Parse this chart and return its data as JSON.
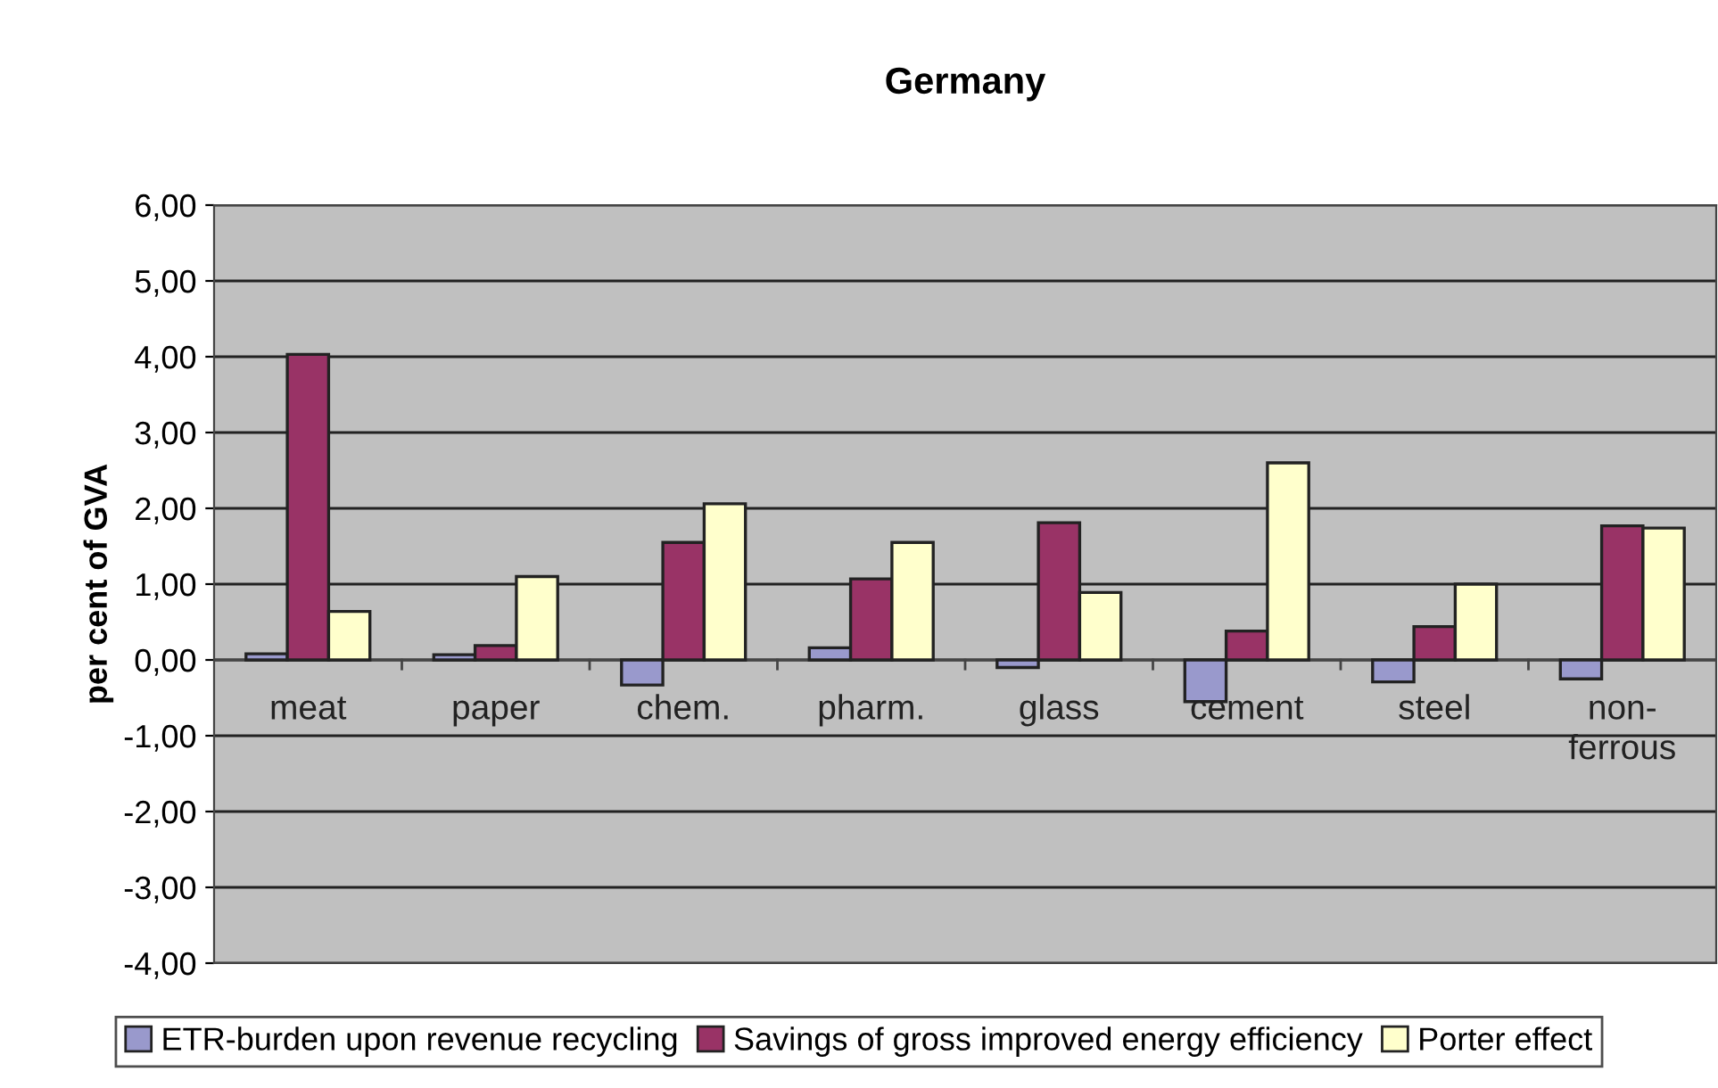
{
  "chart_data": {
    "type": "bar",
    "title": "Germany",
    "ylabel": "per cent of GVA",
    "categories": [
      "meat",
      "paper",
      "chem.",
      "pharm.",
      "glass",
      "cement",
      "steel",
      "non-\nferrous"
    ],
    "series": [
      {
        "name": "ETR-burden upon revenue recycling",
        "color": "#9999cc",
        "values": [
          0.08,
          0.07,
          -0.33,
          0.16,
          -0.1,
          -0.55,
          -0.29,
          -0.25
        ]
      },
      {
        "name": "Savings of gross improved energy efficiency",
        "color": "#993366",
        "values": [
          4.03,
          0.19,
          1.55,
          1.07,
          1.81,
          0.38,
          0.44,
          1.77
        ]
      },
      {
        "name": "Porter effect",
        "color": "#ffffcc",
        "values": [
          0.64,
          1.1,
          2.06,
          1.55,
          0.89,
          2.6,
          1.0,
          1.74
        ]
      }
    ],
    "ylim": [
      -4,
      6
    ],
    "yticks": [
      {
        "value": -4,
        "label": "-4,00"
      },
      {
        "value": -3,
        "label": "-3,00"
      },
      {
        "value": -2,
        "label": "-2,00"
      },
      {
        "value": -1,
        "label": "-1,00"
      },
      {
        "value": 0,
        "label": "0,00"
      },
      {
        "value": 1,
        "label": "1,00"
      },
      {
        "value": 2,
        "label": "2,00"
      },
      {
        "value": 3,
        "label": "3,00"
      },
      {
        "value": 4,
        "label": "4,00"
      },
      {
        "value": 5,
        "label": "5,00"
      },
      {
        "value": 6,
        "label": "6,00"
      }
    ],
    "grid": "y",
    "legend": "bottom"
  }
}
